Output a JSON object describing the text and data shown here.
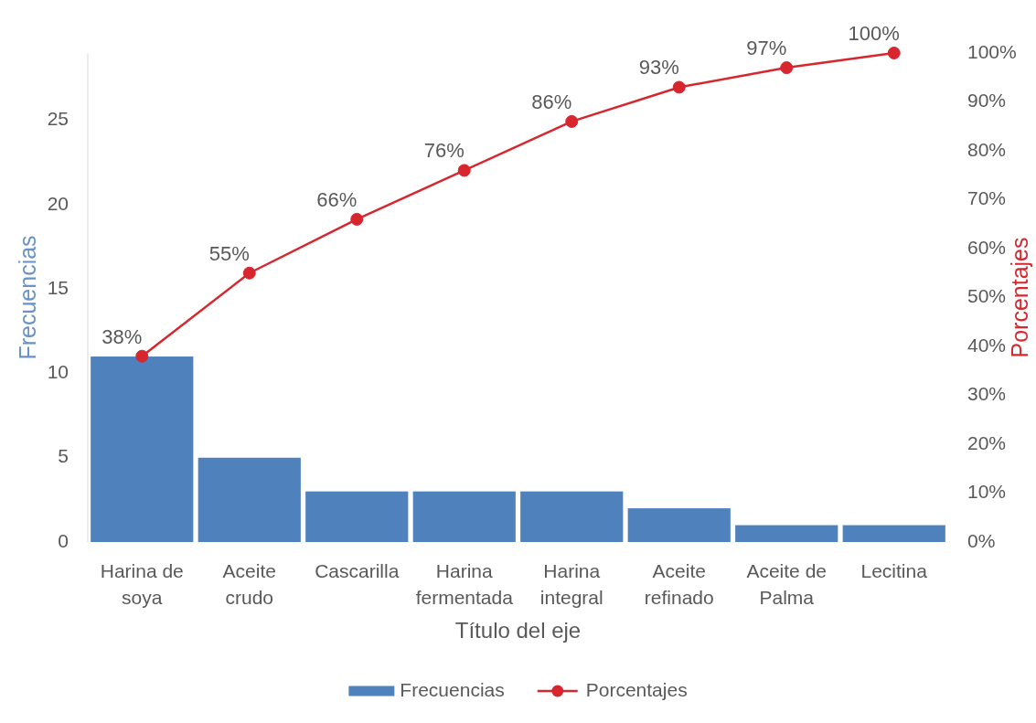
{
  "chart_data": {
    "type": "bar",
    "categories": [
      "Harina de soya",
      "Aceite crudo",
      "Cascarilla",
      "Harina fermentada",
      "Harina integral",
      "Aceite refinado",
      "Aceite de Palma",
      "Lecitina"
    ],
    "xlabel": "Título del eje",
    "ylabel": "Frecuencias",
    "y2label": "Porcentajes",
    "series": [
      {
        "name": "Frecuencias",
        "color": "#4f81bd",
        "values": [
          11,
          5,
          3,
          3,
          3,
          2,
          1,
          1
        ]
      },
      {
        "name": "Porcentajes",
        "type": "line",
        "axis": "y2",
        "color": "#d7262e",
        "marker": "circle",
        "values": [
          38,
          55,
          66,
          76,
          86,
          93,
          97,
          100
        ],
        "value_labels": [
          "38%",
          "55%",
          "66%",
          "76%",
          "86%",
          "93%",
          "97%",
          "100%"
        ]
      }
    ],
    "ylim": [
      0,
      29
    ],
    "yticks": [
      0,
      5,
      10,
      15,
      20,
      25
    ],
    "y2lim": [
      0,
      100
    ],
    "y2ticks": [
      {
        "value": 0,
        "label": "0%"
      },
      {
        "value": 10,
        "label": "10%"
      },
      {
        "value": 20,
        "label": "20%"
      },
      {
        "value": 30,
        "label": "30%"
      },
      {
        "value": 40,
        "label": "40%"
      },
      {
        "value": 50,
        "label": "50%"
      },
      {
        "value": 60,
        "label": "60%"
      },
      {
        "value": 70,
        "label": "70%"
      },
      {
        "value": 80,
        "label": "80%"
      },
      {
        "value": 90,
        "label": "90%"
      },
      {
        "value": 100,
        "label": "100%"
      }
    ],
    "legend": "bottom"
  }
}
